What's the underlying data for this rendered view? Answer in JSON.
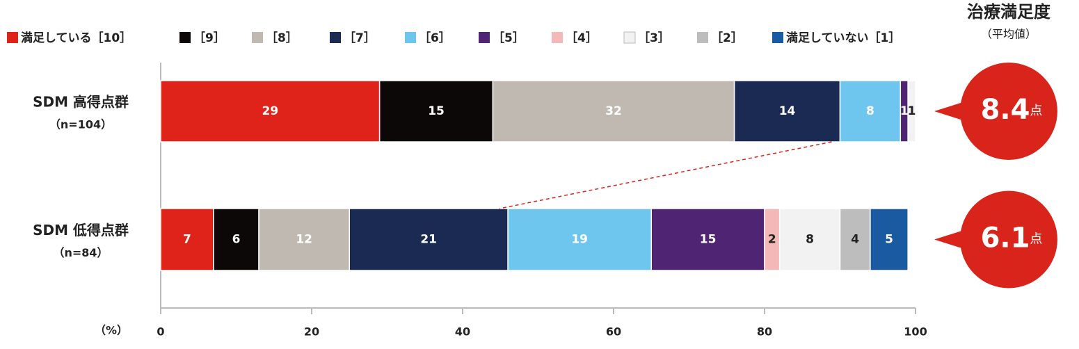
{
  "chart_data": {
    "type": "stacked_barh",
    "categories": [
      "SDM 高得点群",
      "SDM 低得点群"
    ],
    "category_sublabels": [
      "（n=104）",
      "（n=84）"
    ],
    "series": [
      {
        "name": "満足している［10］",
        "color": "#e0231a",
        "label_color": "#ffffff",
        "values": [
          29,
          7
        ]
      },
      {
        "name": "［9］",
        "color": "#0c0807",
        "label_color": "#ffffff",
        "values": [
          15,
          6
        ]
      },
      {
        "name": "［8］",
        "color": "#c0b9b2",
        "label_color": "#ffffff",
        "values": [
          32,
          12
        ]
      },
      {
        "name": "［7］",
        "color": "#1b2a52",
        "label_color": "#ffffff",
        "values": [
          14,
          21
        ]
      },
      {
        "name": "［6］",
        "color": "#6ec6ef",
        "label_color": "#ffffff",
        "values": [
          8,
          19
        ]
      },
      {
        "name": "［5］",
        "color": "#4f2472",
        "label_color": "#ffffff",
        "values": [
          1,
          15
        ]
      },
      {
        "name": "［4］",
        "color": "#f5b8b8",
        "label_color": "#222222",
        "values": [
          null,
          2
        ]
      },
      {
        "name": "［3］",
        "color": "#f2f2f2",
        "label_color": "#222222",
        "values": [
          1,
          8
        ]
      },
      {
        "name": "［2］",
        "color": "#bdbdbd",
        "label_color": "#222222",
        "values": [
          null,
          4
        ]
      },
      {
        "name": "満足していない［1］",
        "color": "#1a5aa0",
        "label_color": "#ffffff",
        "values": [
          null,
          5
        ]
      }
    ],
    "xlim": [
      0,
      100
    ],
    "xticks": [
      0,
      20,
      40,
      60,
      80,
      100
    ],
    "x_unit_label": "（%）",
    "mean_title": "治療満足度",
    "mean_subtitle": "（平均値）",
    "means": [
      8.4,
      6.1
    ],
    "mean_unit": "点",
    "mean_color": "#d9241b",
    "connector_series": 3
  }
}
